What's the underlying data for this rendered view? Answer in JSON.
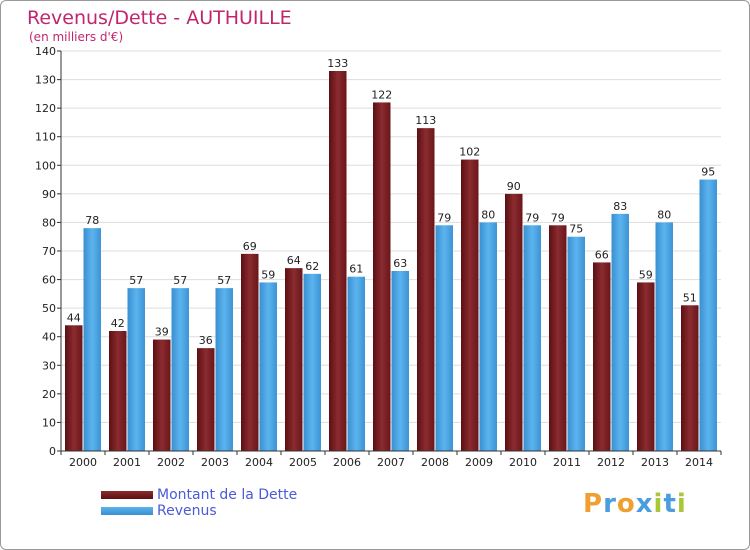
{
  "title": "Revenus/Dette - AUTHUILLE",
  "subtitle": "(en milliers d'€)",
  "chart_data": {
    "type": "bar",
    "title": "Revenus/Dette - AUTHUILLE",
    "ylabel": "(en milliers d'€)",
    "ylim": [
      0,
      140
    ],
    "yticks": [
      0,
      10,
      20,
      30,
      40,
      50,
      60,
      70,
      80,
      90,
      100,
      110,
      120,
      130,
      140
    ],
    "grid": true,
    "legend_position": "bottom-left",
    "categories": [
      "2000",
      "2001",
      "2002",
      "2003",
      "2004",
      "2005",
      "2006",
      "2007",
      "2008",
      "2009",
      "2010",
      "2011",
      "2012",
      "2013",
      "2014"
    ],
    "series": [
      {
        "name": "Montant de la Dette",
        "color": "#7a1f22",
        "values": [
          44,
          42,
          39,
          36,
          69,
          64,
          133,
          122,
          113,
          102,
          90,
          79,
          66,
          59,
          51
        ]
      },
      {
        "name": "Revenus",
        "color": "#4aa6e6",
        "values": [
          78,
          57,
          57,
          57,
          59,
          62,
          61,
          63,
          79,
          80,
          79,
          75,
          83,
          80,
          95
        ]
      }
    ]
  },
  "legend": {
    "items": [
      {
        "label": "Montant de la Dette",
        "color": "#7a1f22"
      },
      {
        "label": "Revenus",
        "color": "#4aa6e6"
      }
    ]
  },
  "logo": {
    "letters": [
      "P",
      "r",
      "o",
      "x",
      "i",
      "t",
      "i"
    ],
    "colors": [
      "#f0a030",
      "#4a9ee0",
      "#f0a030",
      "#4a9ee0",
      "#a8c838",
      "#4a9ee0",
      "#a8c838"
    ]
  }
}
